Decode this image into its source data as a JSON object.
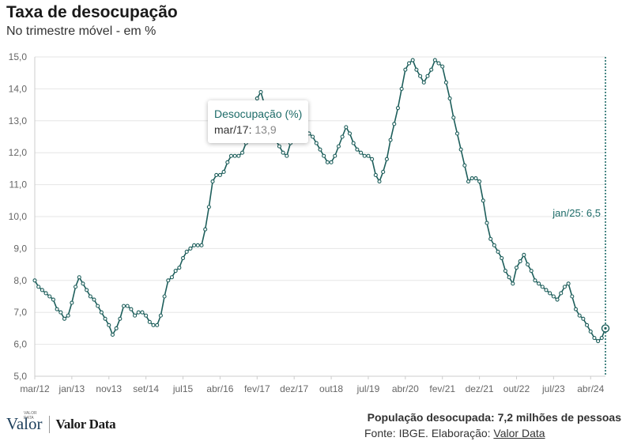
{
  "header": {
    "title": "Taxa de desocupação",
    "subtitle": "No trimestre móvel - em %"
  },
  "tooltip": {
    "series_name": "Desocupação (%)",
    "point_label": "mar/17:",
    "point_value": "13,9"
  },
  "annotation": {
    "text": "jan/25: 6,5"
  },
  "footer": {
    "logo_valor": "Valor",
    "logo_valor_small": "VALOR DATA",
    "logo_valordata": "Valor Data",
    "note": "População desocupada: 7,2 milhões de pessoas",
    "source_prefix": "Fonte: IBGE. Elaboração:",
    "source_link": "Valor Data"
  },
  "colors": {
    "line": "#1d5e5b",
    "accent": "#1d6b68",
    "grid": "#e6e6e6"
  },
  "chart_data": {
    "type": "line",
    "title": "Taxa de desocupação",
    "subtitle": "No trimestre móvel - em %",
    "ylim": [
      5.0,
      15.0
    ],
    "y_ticks": [
      "5,0",
      "6,0",
      "7,0",
      "8,0",
      "9,0",
      "10,0",
      "11,0",
      "12,0",
      "13,0",
      "14,0",
      "15,0"
    ],
    "x_tick_labels": [
      "mar/12",
      "jan/13",
      "nov13",
      "set/14",
      "jul15",
      "abr/16",
      "fev/17",
      "dez/17",
      "out18",
      "jul/19",
      "abr/20",
      "fev/21",
      "dez/21",
      "out/22",
      "jul/23",
      "abr/24"
    ],
    "x_start": "mar/12",
    "x_end": "jan/25",
    "grid": true,
    "series": [
      {
        "values": [
          8.0,
          7.8,
          7.7,
          7.6,
          7.5,
          7.4,
          7.1,
          7.0,
          6.8,
          6.9,
          7.3,
          7.8,
          8.1,
          7.9,
          7.7,
          7.5,
          7.4,
          7.2,
          7.0,
          6.8,
          6.6,
          6.3,
          6.5,
          6.8,
          7.2,
          7.2,
          7.1,
          6.9,
          7.0,
          7.0,
          6.9,
          6.7,
          6.6,
          6.6,
          6.9,
          7.5,
          8.0,
          8.1,
          8.3,
          8.4,
          8.7,
          8.9,
          9.0,
          9.1,
          9.1,
          9.1,
          9.6,
          10.3,
          11.1,
          11.3,
          11.3,
          11.4,
          11.7,
          11.9,
          11.9,
          11.9,
          12.0,
          12.3,
          12.6,
          13.2,
          13.7,
          13.9,
          13.5,
          13.0,
          12.6,
          12.4,
          12.2,
          12.0,
          11.9,
          12.3,
          12.7,
          13.1,
          13.0,
          12.8,
          12.6,
          12.5,
          12.3,
          12.1,
          11.9,
          11.7,
          11.7,
          11.9,
          12.2,
          12.5,
          12.8,
          12.6,
          12.3,
          12.1,
          12.0,
          11.9,
          11.9,
          11.8,
          11.3,
          11.1,
          11.4,
          11.8,
          12.4,
          12.9,
          13.4,
          14.0,
          14.6,
          14.8,
          14.9,
          14.6,
          14.4,
          14.2,
          14.4,
          14.6,
          14.9,
          14.8,
          14.7,
          14.2,
          13.7,
          13.1,
          12.6,
          12.1,
          11.6,
          11.1,
          11.2,
          11.2,
          11.1,
          10.5,
          9.8,
          9.3,
          9.1,
          8.9,
          8.7,
          8.3,
          8.1,
          7.9,
          8.4,
          8.6,
          8.8,
          8.5,
          8.3,
          8.0,
          7.9,
          7.8,
          7.7,
          7.6,
          7.5,
          7.4,
          7.6,
          7.8,
          7.9,
          7.5,
          7.1,
          6.9,
          6.8,
          6.6,
          6.4,
          6.2,
          6.1,
          6.2,
          6.5
        ]
      }
    ]
  }
}
